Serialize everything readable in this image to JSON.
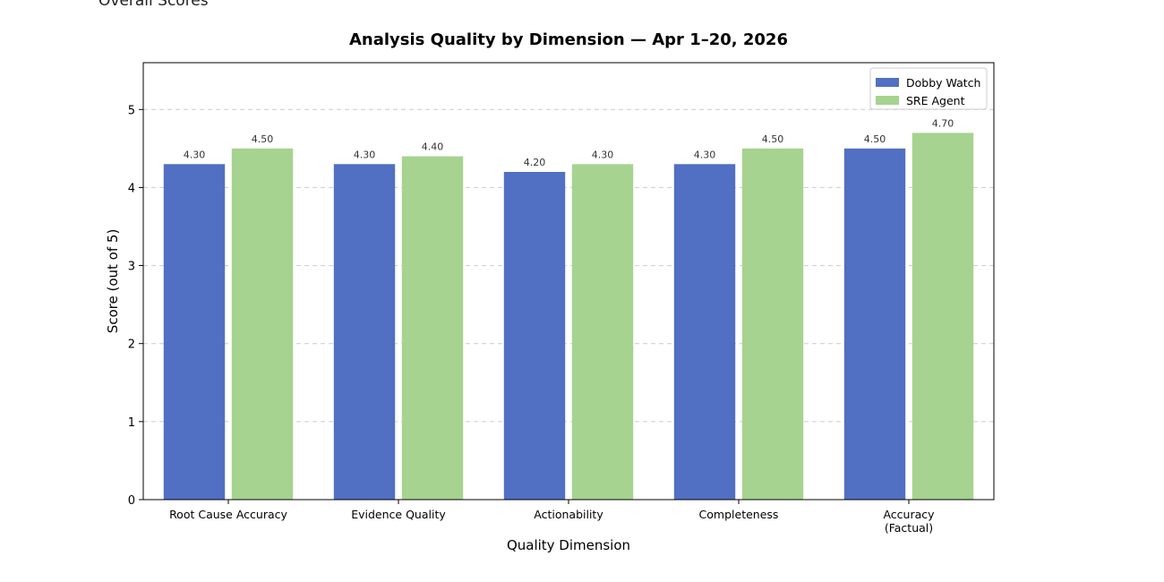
{
  "page": {
    "section_heading": "Overall Scores"
  },
  "chart_data": {
    "type": "bar",
    "title": "Analysis Quality by Dimension — Apr 1–20, 2026",
    "xlabel": "Quality Dimension",
    "ylabel": "Score (out of 5)",
    "ylim": [
      0,
      5.6
    ],
    "yticks": [
      0,
      1,
      2,
      3,
      4,
      5
    ],
    "grid": true,
    "legend_position": "top-right",
    "categories": [
      [
        "Root Cause Accuracy"
      ],
      [
        "Evidence Quality"
      ],
      [
        "Actionability"
      ],
      [
        "Completeness"
      ],
      [
        "Accuracy",
        "(Factual)"
      ]
    ],
    "series": [
      {
        "name": "Dobby Watch",
        "color": "#516fc3",
        "values": [
          4.3,
          4.3,
          4.2,
          4.3,
          4.5
        ],
        "value_labels": [
          "4.30",
          "4.30",
          "4.20",
          "4.30",
          "4.50"
        ]
      },
      {
        "name": "SRE Agent",
        "color": "#a6d38f",
        "values": [
          4.5,
          4.4,
          4.3,
          4.5,
          4.7
        ],
        "value_labels": [
          "4.50",
          "4.40",
          "4.30",
          "4.50",
          "4.70"
        ]
      }
    ]
  }
}
